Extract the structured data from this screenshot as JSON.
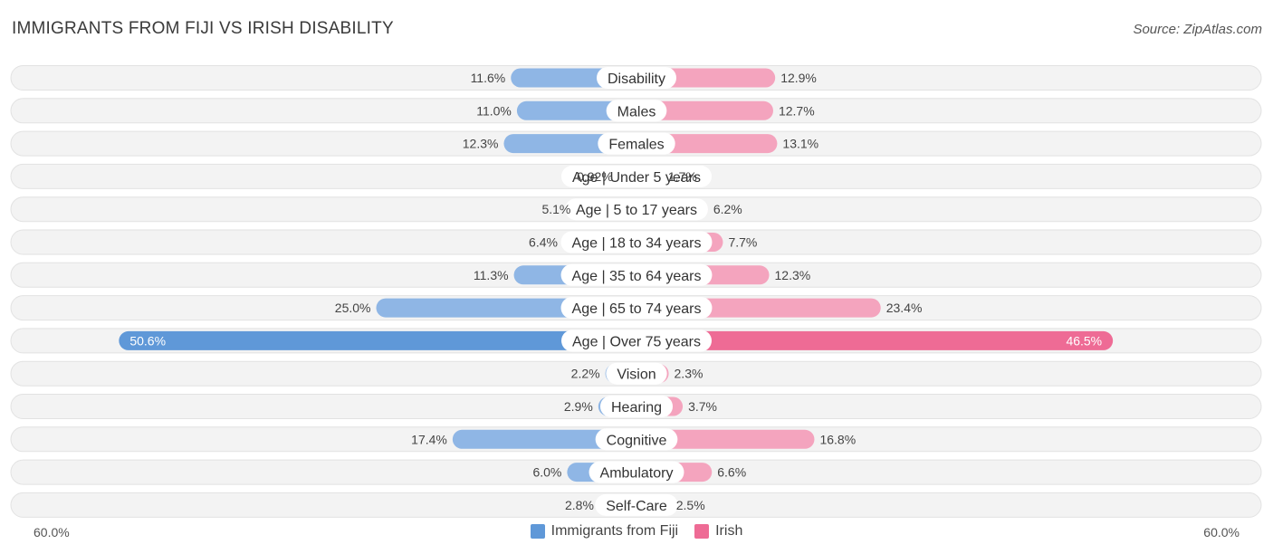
{
  "header": {
    "title": "IMMIGRANTS FROM FIJI VS IRISH DISABILITY",
    "source": "Source: ZipAtlas.com"
  },
  "colors": {
    "left_bar": "#8fb6e5",
    "left_bar_highlight": "#5f98d8",
    "right_bar": "#f4a4be",
    "right_bar_highlight": "#ee6b95",
    "row_bg": "#efefef"
  },
  "chart_data": {
    "type": "bar",
    "orientation": "horizontal-diverging",
    "title": "IMMIGRANTS FROM FIJI VS IRISH DISABILITY",
    "categories": [
      "Disability",
      "Males",
      "Females",
      "Age | Under 5 years",
      "Age | 5 to 17 years",
      "Age | 18 to 34 years",
      "Age | 35 to 64 years",
      "Age | 65 to 74 years",
      "Age | Over 75 years",
      "Vision",
      "Hearing",
      "Cognitive",
      "Ambulatory",
      "Self-Care"
    ],
    "series": [
      {
        "name": "Immigrants from Fiji",
        "values": [
          11.6,
          11.0,
          12.3,
          0.92,
          5.1,
          6.4,
          11.3,
          25.0,
          50.6,
          2.2,
          2.9,
          17.4,
          6.0,
          2.8
        ],
        "labels": [
          "11.6%",
          "11.0%",
          "12.3%",
          "0.92%",
          "5.1%",
          "6.4%",
          "11.3%",
          "25.0%",
          "50.6%",
          "2.2%",
          "2.9%",
          "17.4%",
          "6.0%",
          "2.8%"
        ]
      },
      {
        "name": "Irish",
        "values": [
          12.9,
          12.7,
          13.1,
          1.7,
          6.2,
          7.7,
          12.3,
          23.4,
          46.5,
          2.3,
          3.7,
          16.8,
          6.6,
          2.5
        ],
        "labels": [
          "12.9%",
          "12.7%",
          "13.1%",
          "1.7%",
          "6.2%",
          "7.7%",
          "12.3%",
          "23.4%",
          "46.5%",
          "2.3%",
          "3.7%",
          "16.8%",
          "6.6%",
          "2.5%"
        ]
      }
    ],
    "xlim": [
      -60,
      60
    ],
    "axis_left_label": "60.0%",
    "axis_right_label": "60.0%",
    "highlight_index": 8,
    "legend_position": "bottom-center"
  }
}
